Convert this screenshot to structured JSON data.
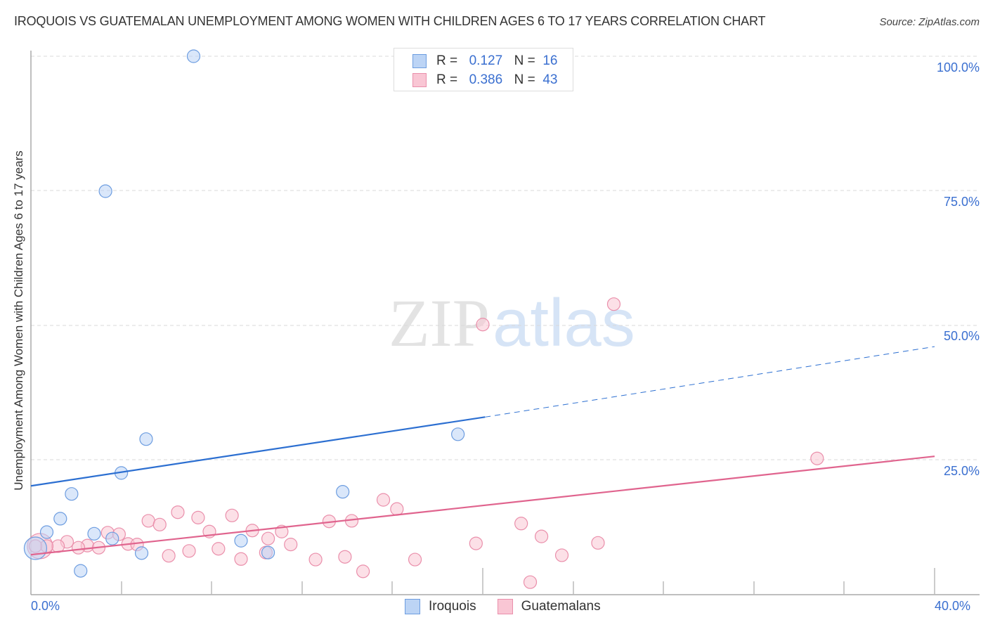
{
  "header": {
    "title": "IROQUOIS VS GUATEMALAN UNEMPLOYMENT AMONG WOMEN WITH CHILDREN AGES 6 TO 17 YEARS CORRELATION CHART",
    "source": "Source: ZipAtlas.com"
  },
  "axes": {
    "ylabel": "Unemployment Among Women with Children Ages 6 to 17 years",
    "yticks": [
      "100.0%",
      "75.0%",
      "50.0%",
      "25.0%"
    ],
    "xticks": [
      "0.0%",
      "40.0%"
    ]
  },
  "legend": {
    "series": [
      {
        "name": "Iroquois",
        "r_label": "R =",
        "r_value": "0.127",
        "n_label": "N =",
        "n_value": "16"
      },
      {
        "name": "Guatemalans",
        "r_label": "R =",
        "r_value": "0.386",
        "n_label": "N =",
        "n_value": "43"
      }
    ]
  },
  "watermark": {
    "part1": "ZIP",
    "part2": "atlas"
  },
  "colors": {
    "iroquois_fill": "#bcd4f5",
    "iroquois_stroke": "#6d9de0",
    "iroquois_line": "#2c6fd1",
    "guatemalans_fill": "#f9c6d4",
    "guatemalans_stroke": "#ea8fab",
    "guatemalans_line": "#e0648e",
    "tick_label": "#3a6fd0"
  },
  "chart_data": {
    "type": "scatter",
    "title": "IROQUOIS VS GUATEMALAN UNEMPLOYMENT AMONG WOMEN WITH CHILDREN AGES 6 TO 17 YEARS CORRELATION CHART",
    "xlabel": "",
    "ylabel": "Unemployment Among Women with Children Ages 6 to 17 years",
    "xlim": [
      0,
      40
    ],
    "ylim": [
      0,
      100
    ],
    "grid": "horizontal dashed at 25, 50, 75, 100",
    "legend_position": "top-center and bottom-center",
    "series": [
      {
        "name": "Iroquois",
        "R": 0.127,
        "N": 16,
        "points": [
          [
            7.2,
            100.0
          ],
          [
            3.3,
            74.9
          ],
          [
            5.1,
            28.8
          ],
          [
            18.9,
            29.7
          ],
          [
            4.0,
            22.5
          ],
          [
            1.8,
            18.6
          ],
          [
            13.8,
            19.0
          ],
          [
            1.3,
            14.0
          ],
          [
            0.7,
            11.5
          ],
          [
            2.8,
            11.2
          ],
          [
            3.6,
            10.3
          ],
          [
            9.3,
            9.9
          ],
          [
            4.9,
            7.6
          ],
          [
            10.5,
            7.7
          ],
          [
            2.2,
            4.3
          ],
          [
            0.2,
            8.5
          ]
        ],
        "trend_line": {
          "x0": 0,
          "y0": 20.1,
          "x_solid_end": 20.1,
          "y_solid_end": 32.9,
          "x1": 40,
          "y1": 46.0
        }
      },
      {
        "name": "Guatemalans",
        "R": 0.386,
        "N": 43,
        "points": [
          [
            25.8,
            53.9
          ],
          [
            20.0,
            50.1
          ],
          [
            34.8,
            25.2
          ],
          [
            15.6,
            17.5
          ],
          [
            16.2,
            15.8
          ],
          [
            6.5,
            15.2
          ],
          [
            8.9,
            14.6
          ],
          [
            7.4,
            14.2
          ],
          [
            5.2,
            13.6
          ],
          [
            13.2,
            13.5
          ],
          [
            14.2,
            13.6
          ],
          [
            5.7,
            12.9
          ],
          [
            21.7,
            13.1
          ],
          [
            9.8,
            11.8
          ],
          [
            7.9,
            11.6
          ],
          [
            11.1,
            11.6
          ],
          [
            3.4,
            11.4
          ],
          [
            3.9,
            11.1
          ],
          [
            10.5,
            10.3
          ],
          [
            22.6,
            10.7
          ],
          [
            1.6,
            9.7
          ],
          [
            25.1,
            9.5
          ],
          [
            19.7,
            9.4
          ],
          [
            4.3,
            9.3
          ],
          [
            4.7,
            9.2
          ],
          [
            11.5,
            9.2
          ],
          [
            2.5,
            9.0
          ],
          [
            1.2,
            8.9
          ],
          [
            2.1,
            8.6
          ],
          [
            3.0,
            8.6
          ],
          [
            0.7,
            8.9
          ],
          [
            0.2,
            8.9
          ],
          [
            8.3,
            8.4
          ],
          [
            7.0,
            8.0
          ],
          [
            10.4,
            7.7
          ],
          [
            6.1,
            7.1
          ],
          [
            23.5,
            7.2
          ],
          [
            13.9,
            6.9
          ],
          [
            9.3,
            6.5
          ],
          [
            12.6,
            6.4
          ],
          [
            17.0,
            6.4
          ],
          [
            14.7,
            4.2
          ],
          [
            22.1,
            2.2
          ]
        ],
        "trend_line": {
          "x0": 0,
          "y0": 7.3,
          "x1": 40,
          "y1": 25.6
        }
      }
    ]
  }
}
